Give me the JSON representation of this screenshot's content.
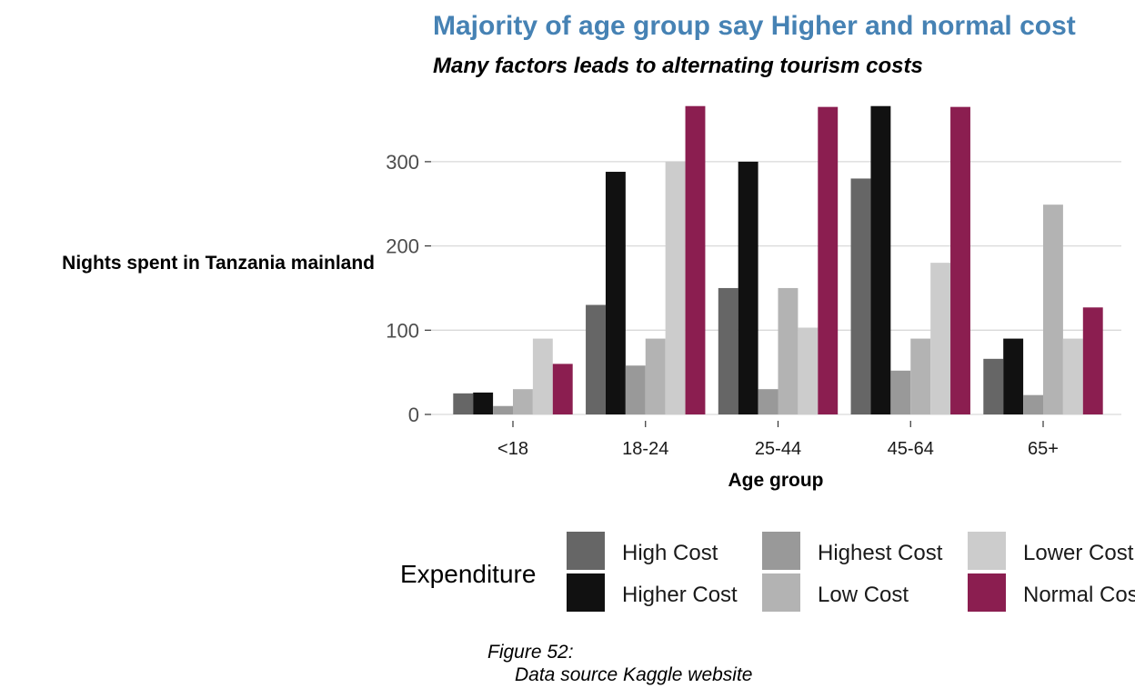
{
  "colors": {
    "title": "#4682B4",
    "grid": "#d9d9d9",
    "axis": "#333333"
  },
  "chart_data": {
    "type": "bar",
    "title": "Majority of age group say Higher and normal cost",
    "subtitle": "Many factors leads to alternating tourism costs",
    "xlabel": "Age group",
    "ylabel": "Nights spent in Tanzania mainland",
    "ylim": [
      0,
      370
    ],
    "yticks": [
      0,
      100,
      200,
      300
    ],
    "grid": "horizontal",
    "legend_title": "Expenditure",
    "legend_position": "bottom",
    "categories": [
      "<18",
      "18-24",
      "25-44",
      "45-64",
      "65+"
    ],
    "series": [
      {
        "name": "High Cost",
        "color": "#666666",
        "values": [
          25,
          130,
          150,
          280,
          66
        ]
      },
      {
        "name": "Higher Cost",
        "color": "#111111",
        "values": [
          26,
          288,
          300,
          366,
          90
        ]
      },
      {
        "name": "Highest Cost",
        "color": "#999999",
        "values": [
          10,
          58,
          30,
          52,
          23
        ]
      },
      {
        "name": "Low Cost",
        "color": "#b3b3b3",
        "values": [
          30,
          90,
          150,
          90,
          249
        ]
      },
      {
        "name": "Lower Cost",
        "color": "#cccccc",
        "values": [
          90,
          300,
          103,
          180,
          90
        ]
      },
      {
        "name": "Normal Cost",
        "color": "#8B1E50",
        "values": [
          60,
          366,
          365,
          365,
          127
        ]
      }
    ]
  },
  "caption": {
    "line1": "Figure 52:",
    "line2": "Data source Kaggle website"
  }
}
